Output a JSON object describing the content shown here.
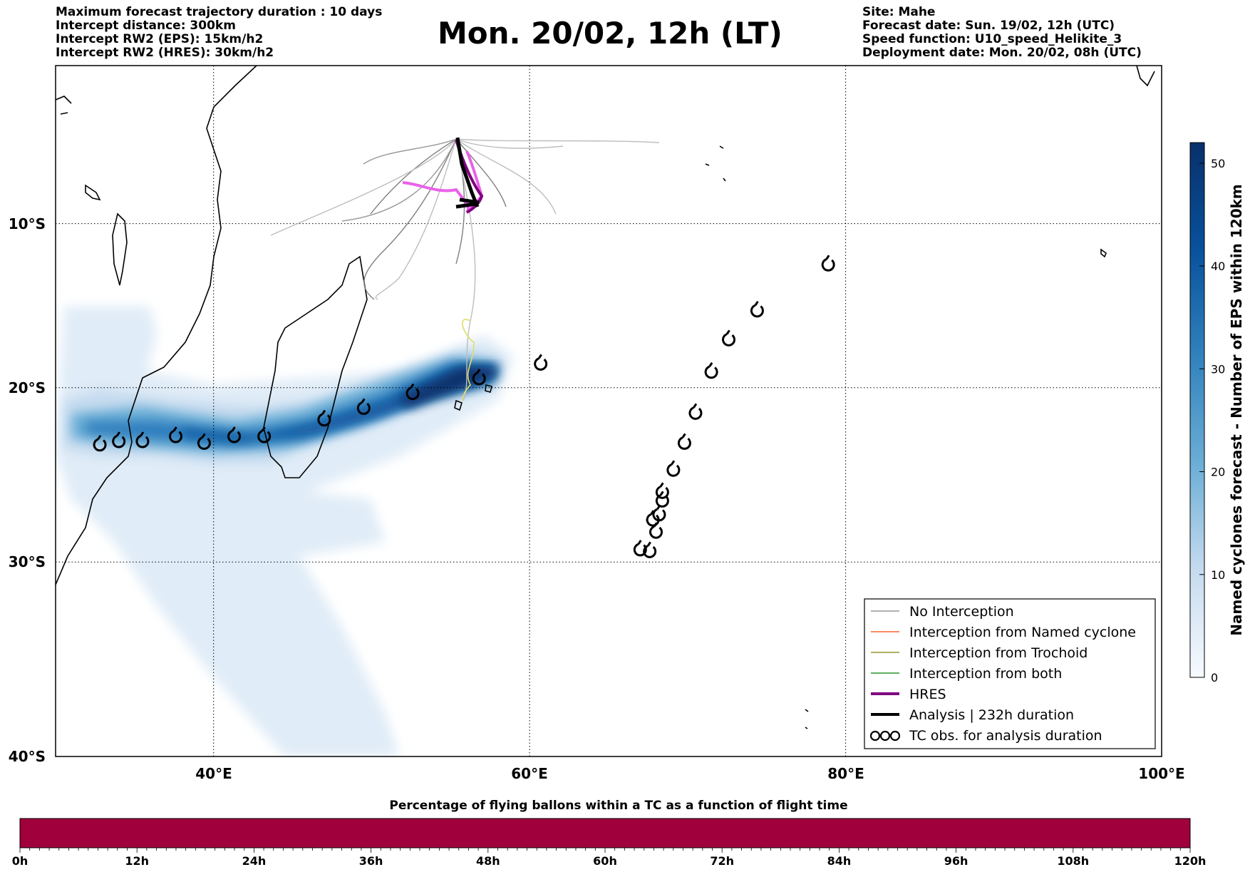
{
  "header": {
    "left": [
      "Maximum forecast trajectory duration : 10 days",
      "Intercept distance: 300km",
      "Intercept RW2 (EPS):  15km/h2",
      "Intercept RW2 (HRES): 30km/h2"
    ],
    "title": "Mon. 20/02, 12h (LT)",
    "right": [
      "Site: Mahe",
      "Forecast date: Sun. 19/02, 12h (UTC)",
      "Speed function: U10_speed_Helikite_3",
      "Deployment date: Mon. 20/02, 08h (UTC)"
    ]
  },
  "map": {
    "lon_range": [
      30,
      100
    ],
    "lat_range": [
      -40,
      1
    ],
    "lon_ticks": [
      {
        "value": 40,
        "label": "40°E"
      },
      {
        "value": 60,
        "label": "60°E"
      },
      {
        "value": 80,
        "label": "80°E"
      },
      {
        "value": 100,
        "label": "100°E"
      }
    ],
    "lat_ticks": [
      {
        "value": -10,
        "label": "10°S"
      },
      {
        "value": -20,
        "label": "20°S"
      },
      {
        "value": -30,
        "label": "30°S"
      },
      {
        "value": -40,
        "label": "40°S"
      }
    ],
    "grid": "dotted"
  },
  "colorbar": {
    "label": "Named cyclones forecast - Number of EPS within 120km",
    "min": 0,
    "max": 52,
    "ticks": [
      "0",
      "10",
      "20",
      "30",
      "40",
      "50"
    ],
    "colormap": "Blues"
  },
  "legend": {
    "items": [
      {
        "label": "No Interception",
        "color": "#808080",
        "style": "thin"
      },
      {
        "label": "Interception from Named cyclone",
        "color": "#ff4500",
        "style": "thin"
      },
      {
        "label": "Interception from Trochoid",
        "color": "#808000",
        "style": "thin"
      },
      {
        "label": "Interception from both",
        "color": "#008000",
        "style": "thin"
      },
      {
        "label": "HRES",
        "color": "#800080",
        "style": "thick"
      },
      {
        "label": "Analysis | 232h duration",
        "color": "#000000",
        "style": "thick"
      },
      {
        "label": "TC obs. for analysis duration",
        "color": "#000000",
        "style": "cyclone"
      }
    ]
  },
  "percentage_bar": {
    "title": "Percentage of flying ballons within a TC as a function of flight time",
    "ticks": [
      "0h",
      "12h",
      "24h",
      "36h",
      "48h",
      "60h",
      "72h",
      "84h",
      "96h",
      "108h",
      "120h"
    ],
    "color": "#a0003c"
  },
  "chart_data": {
    "type": "map",
    "tc_obs": [
      {
        "lon": 32.8,
        "lat": -22.9
      },
      {
        "lon": 34.0,
        "lat": -22.7
      },
      {
        "lon": 35.5,
        "lat": -22.7
      },
      {
        "lon": 37.6,
        "lat": -22.4
      },
      {
        "lon": 39.4,
        "lat": -22.8
      },
      {
        "lon": 41.3,
        "lat": -22.4
      },
      {
        "lon": 43.2,
        "lat": -22.4
      },
      {
        "lon": 47.0,
        "lat": -21.4
      },
      {
        "lon": 49.5,
        "lat": -20.7
      },
      {
        "lon": 52.6,
        "lat": -19.8
      },
      {
        "lon": 56.8,
        "lat": -18.9
      },
      {
        "lon": 60.7,
        "lat": -18.0
      },
      {
        "lon": 67.0,
        "lat": -29.0
      },
      {
        "lon": 67.6,
        "lat": -29.1
      },
      {
        "lon": 68.0,
        "lat": -28.0
      },
      {
        "lon": 67.8,
        "lat": -27.3
      },
      {
        "lon": 68.2,
        "lat": -27.0
      },
      {
        "lon": 68.4,
        "lat": -26.2
      },
      {
        "lon": 68.4,
        "lat": -25.7
      },
      {
        "lon": 69.1,
        "lat": -24.4
      },
      {
        "lon": 69.8,
        "lat": -22.8
      },
      {
        "lon": 70.5,
        "lat": -21.0
      },
      {
        "lon": 71.5,
        "lat": -18.5
      },
      {
        "lon": 72.6,
        "lat": -16.5
      },
      {
        "lon": 74.4,
        "lat": -14.7
      },
      {
        "lon": 78.9,
        "lat": -11.8
      }
    ]
  }
}
